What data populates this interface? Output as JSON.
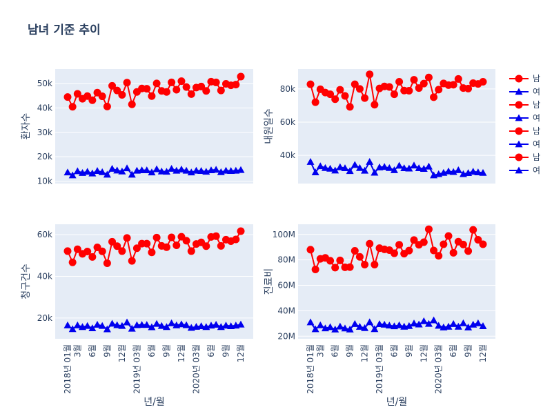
{
  "title": "남녀 기준 추이",
  "colors": {
    "male": "#ff0000",
    "female": "#0000ee",
    "plot_bg": "#e5ecf6",
    "grid": "#ffffff",
    "text": "#2a3f5f"
  },
  "legend": [
    "남",
    "여",
    "남",
    "여",
    "남",
    "여",
    "남",
    "여"
  ],
  "xaxis_title": "년/월",
  "chart_data": [
    {
      "type": "line",
      "ylabel": "환자수",
      "ylim": [
        9000,
        56000
      ],
      "yticks": [
        10000,
        20000,
        30000,
        40000,
        50000
      ],
      "ytick_labels": [
        "10k",
        "20k",
        "30k",
        "40k",
        "50k"
      ],
      "series": [
        {
          "name": "남",
          "marker": "circle",
          "values": [
            44500,
            40500,
            45800,
            43800,
            44900,
            43200,
            46300,
            44800,
            40600,
            49100,
            47200,
            45400,
            50400,
            41500,
            46600,
            48000,
            47900,
            44900,
            50100,
            47000,
            46600,
            50500,
            47500,
            51000,
            48600,
            45700,
            48400,
            48800,
            47000,
            50800,
            50500,
            47200,
            49900,
            49300,
            49600,
            52900
          ]
        },
        {
          "name": "여",
          "marker": "triangle-up",
          "values": [
            13600,
            12400,
            14100,
            13400,
            13900,
            13200,
            14200,
            13700,
            12700,
            15100,
            14400,
            14000,
            15300,
            12700,
            14300,
            14500,
            14500,
            13600,
            14900,
            14000,
            13900,
            15100,
            14300,
            14800,
            14300,
            13600,
            14300,
            14200,
            13900,
            14500,
            14700,
            13700,
            14300,
            14200,
            14300,
            14600
          ]
        }
      ]
    },
    {
      "type": "line",
      "ylabel": "내원일수",
      "ylim": [
        23000,
        92000
      ],
      "yticks": [
        40000,
        60000,
        80000
      ],
      "ytick_labels": [
        "40k",
        "60k",
        "80k"
      ],
      "series": [
        {
          "name": "남",
          "marker": "circle",
          "values": [
            82800,
            72000,
            79800,
            77800,
            76800,
            73800,
            79500,
            75800,
            69200,
            82800,
            80000,
            74500,
            88800,
            70500,
            80300,
            81500,
            81200,
            76800,
            84300,
            79000,
            78900,
            85500,
            80500,
            83200,
            86900,
            75000,
            79600,
            83300,
            82300,
            82500,
            86000,
            80500,
            80200,
            83500,
            83000,
            84300
          ]
        },
        {
          "name": "여",
          "marker": "triangle-up",
          "values": [
            36100,
            29800,
            33500,
            32400,
            32000,
            30900,
            32900,
            32300,
            30600,
            34300,
            32400,
            30800,
            36100,
            29600,
            32800,
            33100,
            32400,
            31100,
            33800,
            32300,
            32100,
            33900,
            32300,
            31900,
            33300,
            28000,
            28700,
            29500,
            30400,
            30000,
            31100,
            28700,
            29400,
            30200,
            29800,
            29500
          ]
        }
      ]
    },
    {
      "type": "line",
      "ylabel": "청구건수",
      "ylim": [
        10000,
        65000
      ],
      "yticks": [
        20000,
        40000,
        60000
      ],
      "ytick_labels": [
        "20k",
        "40k",
        "60k"
      ],
      "series": [
        {
          "name": "남",
          "marker": "circle",
          "values": [
            52100,
            46700,
            53000,
            50800,
            51900,
            49300,
            53900,
            52000,
            46300,
            56600,
            54500,
            52100,
            58400,
            47400,
            53500,
            55700,
            55700,
            51500,
            58600,
            54600,
            54000,
            58700,
            54900,
            59000,
            57100,
            52100,
            55500,
            56300,
            54500,
            58900,
            59300,
            54600,
            57600,
            56900,
            57700,
            61700
          ]
        },
        {
          "name": "여",
          "marker": "triangle-up",
          "values": [
            16500,
            14700,
            16500,
            15700,
            16200,
            15100,
            16800,
            16200,
            14600,
            17300,
            16600,
            16200,
            17900,
            14900,
            16600,
            16700,
            16700,
            15600,
            17200,
            16200,
            15700,
            17500,
            16500,
            17000,
            16600,
            15300,
            15800,
            16100,
            15700,
            16400,
            16800,
            15700,
            16400,
            16100,
            16400,
            16900
          ]
        }
      ]
    },
    {
      "type": "line",
      "ylabel": "진료비",
      "ylim": [
        18000000,
        108000000
      ],
      "yticks": [
        20000000,
        40000000,
        60000000,
        80000000,
        100000000
      ],
      "ytick_labels": [
        "20M",
        "40M",
        "60M",
        "80M",
        "100M"
      ],
      "series": [
        {
          "name": "남",
          "marker": "circle",
          "values": [
            88000000,
            72500000,
            80800000,
            81600000,
            79300000,
            73900000,
            79600000,
            74200000,
            74300000,
            87100000,
            82400000,
            76300000,
            92700000,
            76300000,
            89200000,
            88300000,
            87700000,
            85200000,
            91900000,
            84900000,
            87300000,
            95600000,
            91900000,
            93900000,
            104100000,
            87400000,
            83200000,
            92300000,
            98800000,
            85600000,
            94300000,
            92100000,
            86900000,
            103600000,
            95800000,
            92300000
          ]
        },
        {
          "name": "여",
          "marker": "triangle-up",
          "values": [
            31000000,
            25600000,
            28700000,
            26300000,
            27200000,
            25400000,
            27700000,
            26200000,
            25400000,
            29700000,
            27500000,
            26500000,
            31100000,
            25700000,
            29600000,
            29200000,
            28500000,
            27900000,
            28700000,
            27600000,
            28100000,
            30100000,
            29300000,
            31900000,
            29800000,
            32600000,
            28300000,
            27000000,
            27600000,
            29700000,
            27600000,
            30300000,
            27000000,
            29200000,
            30300000,
            28000000
          ]
        }
      ]
    }
  ],
  "x_tick_labels": [
    "2018년 01월",
    "3월",
    "6월",
    "9월",
    "12월",
    "2019년 03월",
    "6월",
    "9월",
    "12월",
    "2020년 03월",
    "6월",
    "9월",
    "12월"
  ],
  "x_tick_index": [
    0,
    2,
    5,
    8,
    11,
    14,
    17,
    20,
    23,
    26,
    29,
    32,
    35
  ]
}
